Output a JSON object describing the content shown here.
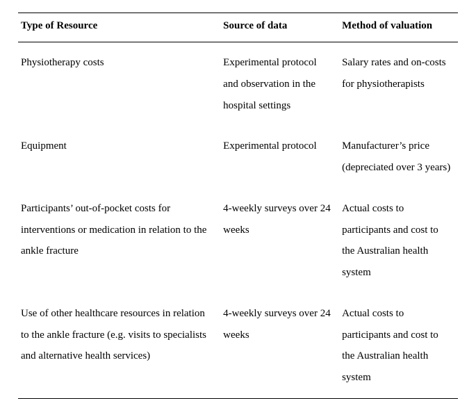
{
  "table": {
    "columns": [
      "Type of Resource",
      "Source of data",
      "Method of valuation"
    ],
    "rows": [
      [
        "Physiotherapy costs",
        "Experimental protocol and observation in the hospital settings",
        "Salary rates and on-costs for physiotherapists"
      ],
      [
        "Equipment",
        "Experimental protocol",
        "Manufacturer’s price (depreciated over 3 years)"
      ],
      [
        "Participants’ out-of-pocket costs for interventions or medication in relation to the ankle fracture",
        "4-weekly surveys over 24 weeks",
        "Actual costs to participants and cost to the Australian health system"
      ],
      [
        "Use of other healthcare resources in relation to the ankle fracture (e.g. visits to specialists and alternative health services)",
        "4-weekly surveys over 24 weeks",
        "Actual costs to participants and cost to the Australian health system"
      ]
    ],
    "style": {
      "font_family": "Times New Roman",
      "header_fontsize_pt": 15,
      "body_fontsize_pt": 15,
      "line_height": 2.05,
      "border_color": "#000000",
      "background_color": "#ffffff",
      "text_color": "#000000",
      "col_widths_pct": [
        46,
        27,
        27
      ]
    }
  }
}
